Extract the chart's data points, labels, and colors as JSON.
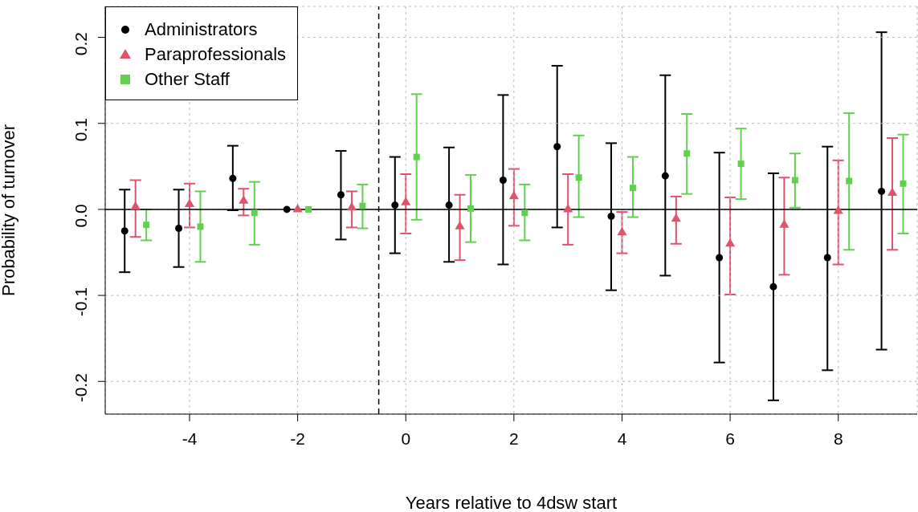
{
  "chart_data": {
    "type": "scatter",
    "xlabel": "Years relative to 4dsw start",
    "ylabel": "Probability of turnover",
    "xlim": [
      -5.56,
      9.46
    ],
    "xticks": [
      -4,
      -2,
      0,
      2,
      4,
      6,
      8
    ],
    "ylim": [
      -0.238,
      0.236
    ],
    "yticks": [
      -0.2,
      -0.1,
      {
        "value": 0,
        "label": "0.0"
      },
      0.1,
      0.2
    ],
    "grid": true,
    "legend": "top left",
    "ref_lines": [
      {
        "axis": "x",
        "value": -0.5,
        "line_style": "dashed",
        "color": "#000000"
      },
      {
        "axis": "y",
        "value": 0,
        "line_style": "solid",
        "color": "#000000"
      }
    ],
    "series": [
      {
        "name": "Administrators",
        "color": "#000000",
        "marker": "circle",
        "x": [
          -5.2,
          -4.2,
          -3.2,
          -2.2,
          -1.2,
          -0.2,
          0.8,
          1.8,
          2.8,
          3.8,
          4.8,
          5.8,
          6.8,
          7.8,
          8.8
        ],
        "values": [
          -0.025,
          -0.022,
          0.036,
          0.0,
          0.017,
          0.005,
          0.005,
          0.034,
          0.073,
          -0.008,
          0.039,
          -0.056,
          -0.09,
          -0.056,
          0.021
        ],
        "errors": [
          [
            -0.073,
            0.023
          ],
          [
            -0.067,
            0.023
          ],
          [
            -0.001,
            0.074
          ],
          null,
          [
            -0.035,
            0.068
          ],
          [
            -0.051,
            0.061
          ],
          [
            -0.061,
            0.072
          ],
          [
            -0.064,
            0.133
          ],
          [
            -0.021,
            0.167
          ],
          [
            -0.094,
            0.077
          ],
          [
            -0.077,
            0.156
          ],
          [
            -0.178,
            0.066
          ],
          [
            -0.222,
            0.042
          ],
          [
            -0.187,
            0.073
          ],
          [
            -0.163,
            0.206
          ]
        ]
      },
      {
        "name": "Paraprofessionals",
        "color": "#df536b",
        "marker": "triangle",
        "x": [
          -5,
          -4,
          -3,
          -2,
          -1,
          0,
          1,
          2,
          3,
          4,
          5,
          6,
          7,
          8,
          9
        ],
        "values": [
          0.003,
          0.006,
          0.01,
          0.0,
          0.002,
          0.008,
          -0.02,
          0.015,
          0.0,
          -0.027,
          -0.011,
          -0.04,
          -0.018,
          -0.002,
          0.019
        ],
        "errors": [
          [
            -0.032,
            0.034
          ],
          [
            -0.021,
            0.03
          ],
          [
            -0.007,
            0.024
          ],
          null,
          [
            -0.021,
            0.021
          ],
          [
            -0.028,
            0.041
          ],
          [
            -0.059,
            0.017
          ],
          [
            -0.019,
            0.047
          ],
          [
            -0.041,
            0.041
          ],
          [
            -0.051,
            -0.003
          ],
          [
            -0.04,
            0.015
          ],
          [
            -0.099,
            0.014
          ],
          [
            -0.076,
            0.037
          ],
          [
            -0.064,
            0.057
          ],
          [
            -0.047,
            0.083
          ]
        ]
      },
      {
        "name": "Other Staff",
        "color": "#61d04f",
        "marker": "square",
        "x": [
          -4.8,
          -3.8,
          -2.8,
          -1.8,
          -0.8,
          0.2,
          1.2,
          2.2,
          3.2,
          4.2,
          5.2,
          6.2,
          7.2,
          8.2,
          9.2
        ],
        "values": [
          -0.018,
          -0.02,
          -0.004,
          0.0,
          0.004,
          0.061,
          0.001,
          -0.004,
          0.037,
          0.025,
          0.065,
          0.053,
          0.034,
          0.033,
          0.03
        ],
        "errors": [
          [
            -0.036,
            0.0
          ],
          [
            -0.061,
            0.021
          ],
          [
            -0.041,
            0.032
          ],
          null,
          [
            -0.022,
            0.029
          ],
          [
            -0.012,
            0.134
          ],
          [
            -0.038,
            0.04
          ],
          [
            -0.036,
            0.029
          ],
          [
            -0.009,
            0.086
          ],
          [
            -0.009,
            0.061
          ],
          [
            0.018,
            0.111
          ],
          [
            0.012,
            0.094
          ],
          [
            0.002,
            0.065
          ],
          [
            -0.047,
            0.112
          ],
          [
            -0.028,
            0.087
          ]
        ]
      }
    ]
  }
}
